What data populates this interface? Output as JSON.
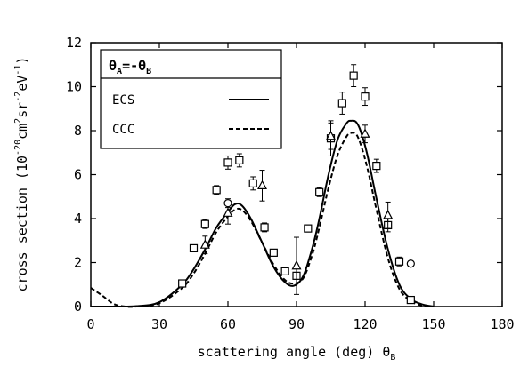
{
  "chart_data": {
    "type": "line",
    "xlabel": "scattering angle (deg) θ",
    "xlabel_sub": "B",
    "ylabel": "cross section  (10",
    "ylabel_exp1": "-20",
    "ylabel_mid1": "cm",
    "ylabel_exp2": "2",
    "ylabel_mid2": "sr",
    "ylabel_exp3": "-2",
    "ylabel_mid3": "eV",
    "ylabel_exp4": "-1",
    "ylabel_end": ")",
    "xlim": [
      0,
      180
    ],
    "ylim": [
      0,
      12
    ],
    "xticks": [
      "0",
      "30",
      "60",
      "90",
      "120",
      "150",
      "180"
    ],
    "yticks": [
      "0",
      "2",
      "4",
      "6",
      "8",
      "10",
      "12"
    ],
    "legend": {
      "title_theta1": "θ",
      "title_sub1": "A",
      "title_eq": "=-θ",
      "title_sub2": "B",
      "entries": [
        {
          "label": "ECS",
          "style": "solid"
        },
        {
          "label": "CCC",
          "style": "dashed"
        }
      ]
    },
    "series": [
      {
        "name": "ECS",
        "style": "solid",
        "x": [
          0,
          10,
          20,
          30,
          40,
          45,
          50,
          55,
          60,
          63,
          66,
          70,
          75,
          80,
          85,
          89,
          93,
          97,
          100,
          104,
          108,
          112,
          114,
          116,
          118,
          121,
          125,
          130,
          135,
          140,
          145,
          150
        ],
        "y": [
          0.0,
          0.0,
          0.02,
          0.2,
          1.0,
          1.7,
          2.6,
          3.6,
          4.3,
          4.65,
          4.6,
          4.0,
          2.9,
          1.8,
          1.1,
          0.95,
          1.4,
          2.7,
          4.0,
          6.0,
          7.6,
          8.35,
          8.45,
          8.4,
          8.0,
          6.9,
          4.9,
          2.6,
          1.0,
          0.35,
          0.1,
          0.0
        ]
      },
      {
        "name": "CCC",
        "style": "dashed",
        "x": [
          0,
          5,
          10,
          15,
          20,
          30,
          40,
          45,
          50,
          55,
          60,
          63,
          66,
          70,
          75,
          80,
          85,
          89,
          93,
          97,
          100,
          104,
          108,
          112,
          114,
          116,
          118,
          121,
          125,
          130,
          135,
          140,
          145,
          150
        ],
        "y": [
          0.85,
          0.5,
          0.12,
          0.0,
          0.0,
          0.15,
          0.85,
          1.5,
          2.4,
          3.4,
          4.1,
          4.4,
          4.4,
          3.9,
          2.9,
          1.9,
          1.2,
          1.05,
          1.3,
          2.4,
          3.6,
          5.4,
          6.9,
          7.75,
          7.9,
          7.85,
          7.4,
          6.3,
          4.4,
          2.2,
          0.8,
          0.25,
          0.05,
          0.0
        ]
      },
      {
        "name": "",
        "marker": "square",
        "x": [
          40,
          45,
          50,
          55,
          60,
          65,
          71,
          76,
          80,
          85,
          90,
          95,
          100,
          105,
          110,
          115,
          120,
          125,
          130,
          135,
          140
        ],
        "y": [
          1.05,
          2.65,
          3.75,
          5.3,
          6.55,
          6.65,
          5.6,
          3.6,
          2.45,
          1.6,
          1.4,
          3.55,
          5.2,
          7.65,
          9.25,
          10.5,
          9.55,
          6.4,
          3.7,
          2.05,
          0.3
        ],
        "err": [
          0.1,
          0.1,
          0.2,
          0.2,
          0.3,
          0.3,
          0.3,
          0.2,
          0.15,
          0.1,
          0.15,
          0.15,
          0.2,
          0.8,
          0.5,
          0.5,
          0.4,
          0.3,
          0.3,
          0.2,
          0.05
        ]
      },
      {
        "name": "",
        "marker": "triangle",
        "x": [
          50,
          60,
          75,
          90,
          105,
          120,
          130
        ],
        "y": [
          2.8,
          4.25,
          5.5,
          1.85,
          7.75,
          7.85,
          4.15
        ],
        "err": [
          0.4,
          0.5,
          0.7,
          1.3,
          0.6,
          0.4,
          0.6
        ]
      },
      {
        "name": "",
        "marker": "circle",
        "x": [
          60,
          140
        ],
        "y": [
          4.7,
          1.95
        ],
        "err": [
          0.2,
          0.0
        ]
      }
    ]
  }
}
